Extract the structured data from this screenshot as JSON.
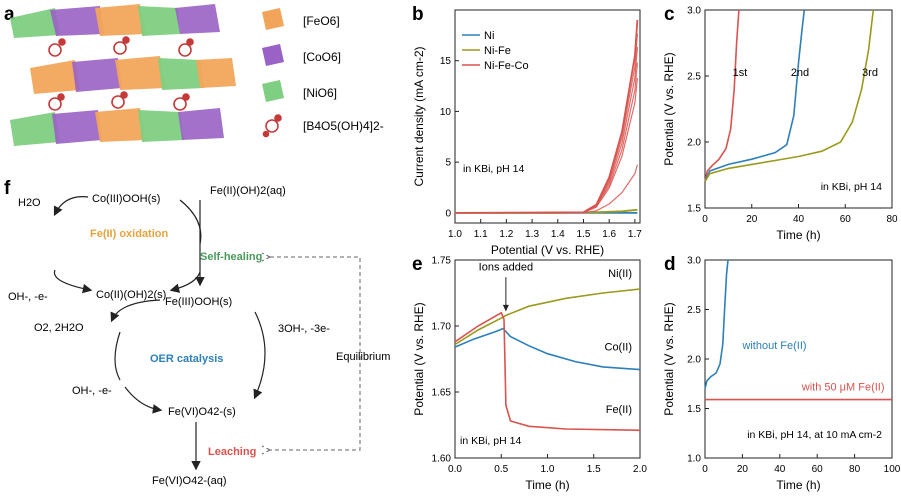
{
  "panel_labels": {
    "a": "a",
    "b": "b",
    "c": "c",
    "d": "d",
    "e": "e",
    "f": "f"
  },
  "panel_a": {
    "legend": [
      {
        "label": "[FeO6]",
        "color": "#f2a55a"
      },
      {
        "label": "[CoO6]",
        "color": "#9a62c4"
      },
      {
        "label": "[NiO6]",
        "color": "#7fcf82"
      },
      {
        "label": "[B4O5(OH)4]2-",
        "color": "#c43a3a"
      }
    ]
  },
  "panel_f": {
    "co_ooh": "Co(III)OOH(s)",
    "h2o": "H2O",
    "fe_oh2": "Fe(II)(OH)2(aq)",
    "fe_oxidation": "Fe(II) oxidation",
    "self_healing": "Self-healing",
    "oh_e_top": "OH-, -e-",
    "co_oh2": "Co(II)(OH)2(s)",
    "fe_iii": "Fe(III)OOH(s)",
    "o2": "O2, 2H2O",
    "three_oh": "3OH-, -3e-",
    "oer": "OER catalysis",
    "equilibrium": "Equilibrium",
    "oh_e_bottom": "OH-, -e-",
    "fe_vi_s": "Fe(VI)O42-(s)",
    "leaching": "Leaching",
    "fe_vi_aq": "Fe(VI)O42-(aq)",
    "colors": {
      "orange": "#e6a23c",
      "green": "#4a9a5c",
      "blue": "#2d7fb8",
      "red": "#d9534f"
    }
  },
  "chart_data": [
    {
      "id": "b",
      "type": "line",
      "xlabel": "Potential (V vs. RHE)",
      "ylabel": "Current density (mA cm-2)",
      "xlim": [
        1.0,
        1.72
      ],
      "ylim": [
        -1,
        20
      ],
      "xticks": [
        "1.0",
        "1.1",
        "1.2",
        "1.3",
        "1.4",
        "1.5",
        "1.6",
        "1.7"
      ],
      "yticks": [
        "0",
        "5",
        "10",
        "15"
      ],
      "annotation": "in KBi, pH 14",
      "series": [
        {
          "name": "Ni",
          "color": "#2d7fb8",
          "x": [
            1.0,
            1.2,
            1.4,
            1.6,
            1.71
          ],
          "y": [
            0,
            0,
            0,
            0,
            0
          ]
        },
        {
          "name": "Ni-Fe",
          "color": "#9a9a1e",
          "x": [
            1.0,
            1.2,
            1.4,
            1.55,
            1.65,
            1.71
          ],
          "y": [
            0,
            0,
            0,
            0.05,
            0.15,
            0.3
          ]
        },
        {
          "name": "Ni-Fe-Co",
          "color": "#d9534f",
          "x": [
            1.0,
            1.5,
            1.55,
            1.6,
            1.65,
            1.7,
            1.71
          ],
          "y": [
            0,
            0.05,
            0.8,
            3.5,
            8.0,
            15.5,
            19.0
          ]
        }
      ]
    },
    {
      "id": "c",
      "type": "line",
      "xlabel": "Time (h)",
      "ylabel": "Potential (V vs. RHE)",
      "xlim": [
        0,
        80
      ],
      "ylim": [
        1.5,
        3.0
      ],
      "xticks": [
        "0",
        "20",
        "40",
        "60",
        "80"
      ],
      "yticks": [
        "1.5",
        "2.0",
        "2.5",
        "3.0"
      ],
      "annotation": "in KBi, pH 14",
      "curve_labels": [
        "1st",
        "2nd",
        "3rd"
      ],
      "series": [
        {
          "name": "1st",
          "color": "#d9534f",
          "x": [
            0,
            1,
            3,
            6,
            9,
            11,
            12.5,
            13.5,
            14.5
          ],
          "y": [
            1.7,
            1.78,
            1.82,
            1.87,
            1.95,
            2.1,
            2.4,
            2.75,
            3.0
          ]
        },
        {
          "name": "2nd",
          "color": "#2d7fb8",
          "x": [
            0,
            2,
            10,
            20,
            30,
            35,
            38,
            40,
            41.5,
            42.5
          ],
          "y": [
            1.7,
            1.78,
            1.83,
            1.87,
            1.92,
            1.98,
            2.2,
            2.6,
            2.85,
            3.0
          ]
        },
        {
          "name": "3rd",
          "color": "#9a9a1e",
          "x": [
            0,
            2,
            10,
            20,
            30,
            40,
            50,
            58,
            63,
            67,
            70,
            72
          ],
          "y": [
            1.7,
            1.76,
            1.8,
            1.83,
            1.86,
            1.89,
            1.93,
            2.0,
            2.15,
            2.4,
            2.7,
            3.0
          ]
        }
      ]
    },
    {
      "id": "e",
      "type": "line",
      "xlabel": "Time (h)",
      "ylabel": "Potential (V vs. RHE)",
      "xlim": [
        0,
        2.0
      ],
      "ylim": [
        1.6,
        1.75
      ],
      "xticks": [
        "0.0",
        "0.5",
        "1.0",
        "1.5",
        "2.0"
      ],
      "yticks": [
        "1.60",
        "1.65",
        "1.70",
        "1.75"
      ],
      "annotation": "in KBi, pH 14",
      "arrow_label": "Ions added",
      "series": [
        {
          "name": "Ni(II)",
          "color": "#9a9a1e",
          "x": [
            0,
            0.25,
            0.5,
            0.55,
            0.8,
            1.2,
            1.6,
            2.0
          ],
          "y": [
            1.686,
            1.697,
            1.706,
            1.708,
            1.715,
            1.721,
            1.725,
            1.728
          ]
        },
        {
          "name": "Co(II)",
          "color": "#2d7fb8",
          "x": [
            0,
            0.2,
            0.45,
            0.52,
            0.6,
            0.8,
            1.0,
            1.3,
            1.6,
            2.0
          ],
          "y": [
            1.684,
            1.69,
            1.696,
            1.698,
            1.692,
            1.685,
            1.679,
            1.673,
            1.669,
            1.667
          ]
        },
        {
          "name": "Fe(II)",
          "color": "#d9534f",
          "x": [
            0,
            0.25,
            0.5,
            0.53,
            0.55,
            0.6,
            0.8,
            1.2,
            2.0
          ],
          "y": [
            1.688,
            1.7,
            1.71,
            1.705,
            1.64,
            1.628,
            1.624,
            1.622,
            1.621
          ]
        }
      ]
    },
    {
      "id": "d",
      "type": "line",
      "xlabel": "Time (h)",
      "ylabel": "Potential (V vs. RHE)",
      "xlim": [
        0,
        100
      ],
      "ylim": [
        1.0,
        3.0
      ],
      "xticks": [
        "0",
        "20",
        "40",
        "60",
        "80",
        "100"
      ],
      "yticks": [
        "1.0",
        "1.5",
        "2.0",
        "2.5",
        "3.0"
      ],
      "annotation": "in KBi, pH 14, at 10 mA cm-2",
      "series": [
        {
          "name": "without Fe(II)",
          "color": "#2d7fb8",
          "x": [
            0,
            1,
            3,
            6,
            8,
            9.5,
            10.5,
            11.5,
            12.3
          ],
          "y": [
            1.7,
            1.78,
            1.82,
            1.86,
            1.95,
            2.15,
            2.5,
            2.85,
            3.0
          ]
        },
        {
          "name": "with 50 μM Fe(II)",
          "color": "#d9534f",
          "x": [
            0,
            20,
            50,
            80,
            100
          ],
          "y": [
            1.59,
            1.59,
            1.59,
            1.59,
            1.59
          ]
        }
      ]
    }
  ]
}
